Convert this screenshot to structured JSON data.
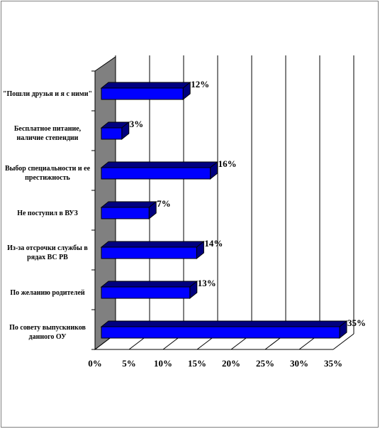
{
  "chart_data": {
    "type": "bar3d-horizontal",
    "categories": [
      "\"Пошли друзья и я с ними\"",
      "Бесплатное питание, наличие степендии",
      "Выбор специальности и ее престижность",
      "Не поступил в ВУЗ",
      "Из-за отсрочки службы в рядах ВС РВ",
      "По желанию родителей",
      "По совету выпускников данного ОУ"
    ],
    "values": [
      12,
      3,
      16,
      7,
      14,
      13,
      35
    ],
    "value_labels": [
      "12%",
      "3%",
      "16%",
      "7%",
      "14%",
      "13%",
      "35%"
    ],
    "color": "#0000ff",
    "xlim": [
      0,
      35
    ],
    "xticks": [
      {
        "value": 0,
        "label": "0%"
      },
      {
        "value": 5,
        "label": "5%"
      },
      {
        "value": 10,
        "label": "10%"
      },
      {
        "value": 15,
        "label": "15%"
      },
      {
        "value": 20,
        "label": "20%"
      },
      {
        "value": 25,
        "label": "25%"
      },
      {
        "value": 30,
        "label": "30%"
      },
      {
        "value": 35,
        "label": "35%"
      }
    ],
    "grid": true
  }
}
